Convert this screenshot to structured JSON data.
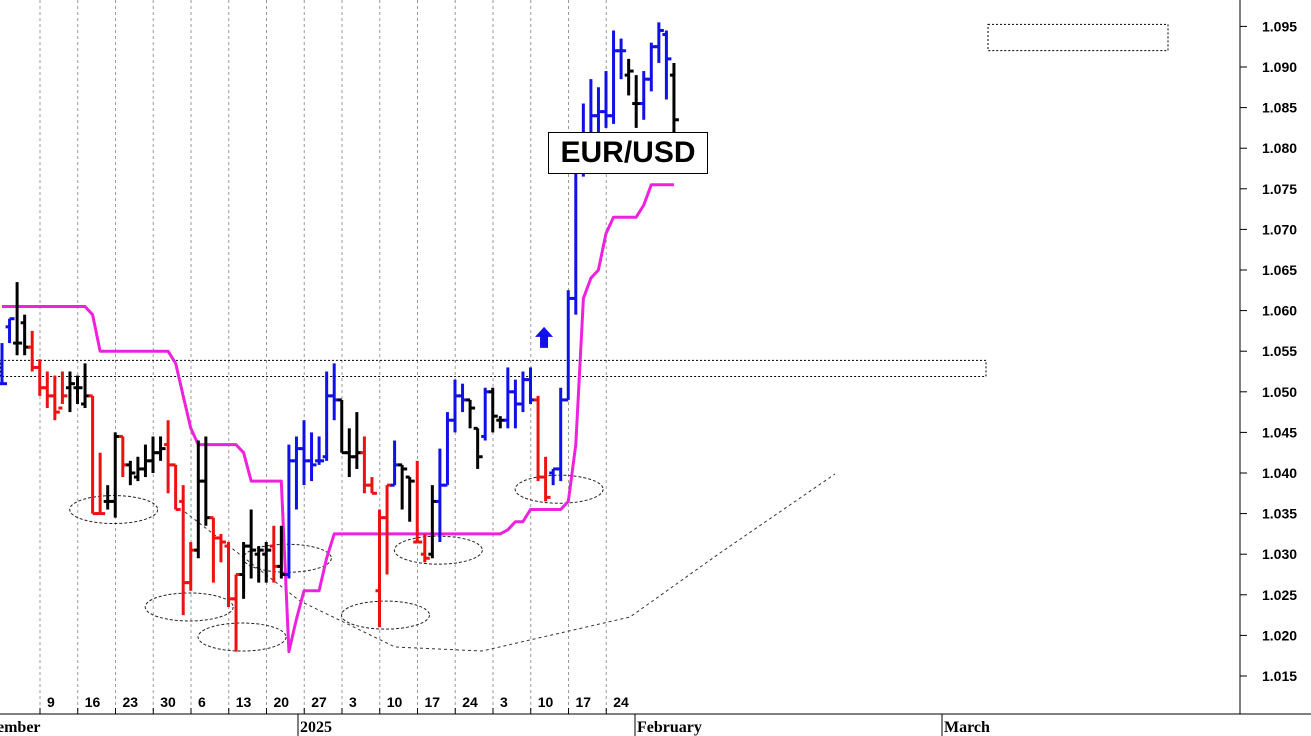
{
  "chart_data": {
    "type": "bar",
    "title": "EUR/USD",
    "ylim": [
      1.013,
      1.099
    ],
    "yticks": [
      "1.015",
      "1.020",
      "1.025",
      "1.030",
      "1.035",
      "1.040",
      "1.045",
      "1.050",
      "1.055",
      "1.060",
      "1.065",
      "1.070",
      "1.075",
      "1.080",
      "1.085",
      "1.090",
      "1.095"
    ],
    "xticks": [
      "9",
      "16",
      "23",
      "30",
      "6",
      "13",
      "20",
      "27",
      "3",
      "10",
      "17",
      "24",
      "3",
      "10",
      "17",
      "24"
    ],
    "month_labels": [
      "ember",
      "2025",
      "February",
      "March"
    ],
    "grid": true,
    "colors": {
      "up": "#1010e8",
      "down": "#ee1111",
      "neutral": "#000000",
      "stop": "#ee22dd",
      "guide": "#333333"
    },
    "series": [
      {
        "type": "ohlc",
        "bars": [
          {
            "h": 1.056,
            "l": 1.051,
            "o": 1.051,
            "c": 1.051,
            "col": "blue"
          },
          {
            "h": 1.059,
            "l": 1.056,
            "o": 1.058,
            "c": 1.059,
            "col": "blue"
          },
          {
            "h": 1.0635,
            "l": 1.0545,
            "o": 1.056,
            "c": 1.056,
            "col": "black"
          },
          {
            "h": 1.0595,
            "l": 1.0545,
            "o": 1.0585,
            "c": 1.0555,
            "col": "black"
          },
          {
            "h": 1.0575,
            "l": 1.0525,
            "o": 1.0555,
            "c": 1.053,
            "col": "red"
          },
          {
            "h": 1.054,
            "l": 1.0495,
            "o": 1.053,
            "c": 1.0505,
            "col": "red"
          },
          {
            "h": 1.0525,
            "l": 1.048,
            "o": 1.0505,
            "c": 1.0495,
            "col": "red"
          },
          {
            "h": 1.052,
            "l": 1.0465,
            "o": 1.0495,
            "c": 1.0475,
            "col": "red"
          },
          {
            "h": 1.0525,
            "l": 1.0485,
            "o": 1.048,
            "c": 1.0495,
            "col": "red"
          },
          {
            "h": 1.0525,
            "l": 1.0475,
            "o": 1.0505,
            "c": 1.051,
            "col": "black"
          },
          {
            "h": 1.052,
            "l": 1.0485,
            "o": 1.0505,
            "c": 1.0505,
            "col": "black"
          },
          {
            "h": 1.0535,
            "l": 1.048,
            "o": 1.0485,
            "c": 1.0495,
            "col": "black"
          },
          {
            "h": 1.0495,
            "l": 1.035,
            "o": 1.0495,
            "c": 1.035,
            "col": "red"
          },
          {
            "h": 1.0425,
            "l": 1.035,
            "o": 1.035,
            "c": 1.035,
            "col": "red"
          },
          {
            "h": 1.0385,
            "l": 1.0355,
            "o": 1.0365,
            "c": 1.0365,
            "col": "black"
          },
          {
            "h": 1.045,
            "l": 1.0345,
            "o": 1.0365,
            "c": 1.0445,
            "col": "black"
          },
          {
            "h": 1.0445,
            "l": 1.0395,
            "o": 1.0445,
            "c": 1.041,
            "col": "red"
          },
          {
            "h": 1.0415,
            "l": 1.0385,
            "o": 1.041,
            "c": 1.04,
            "col": "black"
          },
          {
            "h": 1.042,
            "l": 1.039,
            "o": 1.0395,
            "c": 1.0405,
            "col": "black"
          },
          {
            "h": 1.0435,
            "l": 1.0395,
            "o": 1.0405,
            "c": 1.0415,
            "col": "black"
          },
          {
            "h": 1.0445,
            "l": 1.04,
            "o": 1.0415,
            "c": 1.0425,
            "col": "black"
          },
          {
            "h": 1.0445,
            "l": 1.0415,
            "o": 1.0425,
            "c": 1.043,
            "col": "black"
          },
          {
            "h": 1.0465,
            "l": 1.0375,
            "o": 1.0435,
            "c": 1.041,
            "col": "red"
          },
          {
            "h": 1.041,
            "l": 1.0355,
            "o": 1.041,
            "c": 1.0355,
            "col": "red"
          },
          {
            "h": 1.0385,
            "l": 1.0225,
            "o": 1.0365,
            "c": 1.0265,
            "col": "red"
          },
          {
            "h": 1.0315,
            "l": 1.0255,
            "o": 1.0265,
            "c": 1.0305,
            "col": "red"
          },
          {
            "h": 1.044,
            "l": 1.0295,
            "o": 1.0305,
            "c": 1.039,
            "col": "black"
          },
          {
            "h": 1.0445,
            "l": 1.0335,
            "o": 1.039,
            "c": 1.0345,
            "col": "black"
          },
          {
            "h": 1.0345,
            "l": 1.0265,
            "o": 1.0345,
            "c": 1.032,
            "col": "red"
          },
          {
            "h": 1.0325,
            "l": 1.029,
            "o": 1.032,
            "c": 1.0315,
            "col": "red"
          },
          {
            "h": 1.0315,
            "l": 1.0235,
            "o": 1.031,
            "c": 1.0245,
            "col": "red"
          },
          {
            "h": 1.0275,
            "l": 1.018,
            "o": 1.0245,
            "c": 1.0275,
            "col": "red"
          },
          {
            "h": 1.0315,
            "l": 1.0245,
            "o": 1.0275,
            "c": 1.031,
            "col": "black"
          },
          {
            "h": 1.0355,
            "l": 1.027,
            "o": 1.031,
            "c": 1.0305,
            "col": "black"
          },
          {
            "h": 1.031,
            "l": 1.0265,
            "o": 1.03,
            "c": 1.0305,
            "col": "black"
          },
          {
            "h": 1.0315,
            "l": 1.0265,
            "o": 1.03,
            "c": 1.0305,
            "col": "black"
          },
          {
            "h": 1.0335,
            "l": 1.0265,
            "o": 1.031,
            "c": 1.0285,
            "col": "red"
          },
          {
            "h": 1.0335,
            "l": 1.027,
            "o": 1.0285,
            "c": 1.0275,
            "col": "black"
          },
          {
            "h": 1.0435,
            "l": 1.027,
            "o": 1.0275,
            "c": 1.0415,
            "col": "blue"
          },
          {
            "h": 1.0445,
            "l": 1.0355,
            "o": 1.0415,
            "c": 1.043,
            "col": "blue"
          },
          {
            "h": 1.0465,
            "l": 1.0385,
            "o": 1.043,
            "c": 1.0415,
            "col": "blue"
          },
          {
            "h": 1.045,
            "l": 1.039,
            "o": 1.0415,
            "c": 1.041,
            "col": "blue"
          },
          {
            "h": 1.0445,
            "l": 1.041,
            "o": 1.0415,
            "c": 1.0415,
            "col": "blue"
          },
          {
            "h": 1.0525,
            "l": 1.0415,
            "o": 1.042,
            "c": 1.0495,
            "col": "blue"
          },
          {
            "h": 1.0535,
            "l": 1.0465,
            "o": 1.0495,
            "c": 1.049,
            "col": "blue"
          },
          {
            "h": 1.049,
            "l": 1.0425,
            "o": 1.049,
            "c": 1.0425,
            "col": "black"
          },
          {
            "h": 1.0455,
            "l": 1.0395,
            "o": 1.0425,
            "c": 1.042,
            "col": "black"
          },
          {
            "h": 1.0475,
            "l": 1.0405,
            "o": 1.042,
            "c": 1.0425,
            "col": "black"
          },
          {
            "h": 1.0445,
            "l": 1.0375,
            "o": 1.0425,
            "c": 1.0385,
            "col": "red"
          },
          {
            "h": 1.0395,
            "l": 1.0375,
            "o": 1.0385,
            "c": 1.0375,
            "col": "red"
          },
          {
            "h": 1.0355,
            "l": 1.021,
            "o": 1.0255,
            "c": 1.0345,
            "col": "red"
          },
          {
            "h": 1.0385,
            "l": 1.0275,
            "o": 1.0345,
            "c": 1.0385,
            "col": "red"
          },
          {
            "h": 1.044,
            "l": 1.0385,
            "o": 1.0385,
            "c": 1.041,
            "col": "blue"
          },
          {
            "h": 1.041,
            "l": 1.0355,
            "o": 1.041,
            "c": 1.0405,
            "col": "black"
          },
          {
            "h": 1.0395,
            "l": 1.034,
            "o": 1.0395,
            "c": 1.039,
            "col": "black"
          },
          {
            "h": 1.0415,
            "l": 1.0315,
            "o": 1.0315,
            "c": 1.0315,
            "col": "red"
          },
          {
            "h": 1.0325,
            "l": 1.029,
            "o": 1.03,
            "c": 1.0295,
            "col": "red"
          },
          {
            "h": 1.0385,
            "l": 1.0295,
            "o": 1.03,
            "c": 1.0365,
            "col": "black"
          },
          {
            "h": 1.043,
            "l": 1.0315,
            "o": 1.0365,
            "c": 1.0385,
            "col": "blue"
          },
          {
            "h": 1.0475,
            "l": 1.0385,
            "o": 1.0385,
            "c": 1.0465,
            "col": "blue"
          },
          {
            "h": 1.0515,
            "l": 1.045,
            "o": 1.0465,
            "c": 1.0495,
            "col": "blue"
          },
          {
            "h": 1.051,
            "l": 1.0475,
            "o": 1.0495,
            "c": 1.049,
            "col": "blue"
          },
          {
            "h": 1.049,
            "l": 1.0455,
            "o": 1.049,
            "c": 1.048,
            "col": "black"
          },
          {
            "h": 1.0455,
            "l": 1.0405,
            "o": 1.0455,
            "c": 1.042,
            "col": "black"
          },
          {
            "h": 1.0505,
            "l": 1.044,
            "o": 1.0445,
            "c": 1.05,
            "col": "blue"
          },
          {
            "h": 1.0505,
            "l": 1.045,
            "o": 1.05,
            "c": 1.047,
            "col": "black"
          },
          {
            "h": 1.047,
            "l": 1.0455,
            "o": 1.0465,
            "c": 1.0465,
            "col": "black"
          },
          {
            "h": 1.053,
            "l": 1.0455,
            "o": 1.0465,
            "c": 1.05,
            "col": "blue"
          },
          {
            "h": 1.0515,
            "l": 1.0455,
            "o": 1.05,
            "c": 1.0485,
            "col": "blue"
          },
          {
            "h": 1.0525,
            "l": 1.0475,
            "o": 1.0485,
            "c": 1.0515,
            "col": "blue"
          },
          {
            "h": 1.053,
            "l": 1.0485,
            "o": 1.0515,
            "c": 1.049,
            "col": "blue"
          },
          {
            "h": 1.0495,
            "l": 1.039,
            "o": 1.049,
            "c": 1.0395,
            "col": "red"
          },
          {
            "h": 1.042,
            "l": 1.0365,
            "o": 1.0395,
            "c": 1.037,
            "col": "red"
          },
          {
            "h": 1.0405,
            "l": 1.0385,
            "o": 1.04,
            "c": 1.0405,
            "col": "blue"
          },
          {
            "h": 1.0505,
            "l": 1.039,
            "o": 1.0405,
            "c": 1.049,
            "col": "blue"
          },
          {
            "h": 1.0625,
            "l": 1.049,
            "o": 1.049,
            "c": 1.0615,
            "col": "blue"
          },
          {
            "h": 1.0795,
            "l": 1.0595,
            "o": 1.0615,
            "c": 1.0795,
            "col": "blue"
          },
          {
            "h": 1.0855,
            "l": 1.0765,
            "o": 1.0795,
            "c": 1.0795,
            "col": "blue"
          },
          {
            "h": 1.0885,
            "l": 1.078,
            "o": 1.0795,
            "c": 1.084,
            "col": "blue"
          },
          {
            "h": 1.0875,
            "l": 1.0795,
            "o": 1.084,
            "c": 1.0845,
            "col": "blue"
          },
          {
            "h": 1.0895,
            "l": 1.0825,
            "o": 1.0845,
            "c": 1.084,
            "col": "blue"
          },
          {
            "h": 1.0945,
            "l": 1.083,
            "o": 1.084,
            "c": 1.092,
            "col": "blue"
          },
          {
            "h": 1.0935,
            "l": 1.0885,
            "o": 1.092,
            "c": 1.092,
            "col": "blue"
          },
          {
            "h": 1.091,
            "l": 1.0865,
            "o": 1.089,
            "c": 1.0895,
            "col": "black"
          },
          {
            "h": 1.089,
            "l": 1.0825,
            "o": 1.0855,
            "c": 1.0855,
            "col": "black"
          },
          {
            "h": 1.0895,
            "l": 1.0835,
            "o": 1.0855,
            "c": 1.0885,
            "col": "blue"
          },
          {
            "h": 1.093,
            "l": 1.087,
            "o": 1.0885,
            "c": 1.0925,
            "col": "blue"
          },
          {
            "h": 1.0955,
            "l": 1.0905,
            "o": 1.0925,
            "c": 1.0945,
            "col": "blue"
          },
          {
            "h": 1.0945,
            "l": 1.086,
            "o": 1.094,
            "c": 1.091,
            "col": "blue"
          },
          {
            "h": 1.0905,
            "l": 1.0815,
            "o": 1.089,
            "c": 1.0835,
            "col": "black"
          }
        ]
      },
      {
        "type": "line",
        "values": [
          1.0605,
          1.0605,
          1.0605,
          1.0605,
          1.0605,
          1.0605,
          1.0605,
          1.0605,
          1.0605,
          1.0605,
          1.0605,
          1.0605,
          1.0595,
          1.055,
          1.055,
          1.055,
          1.055,
          1.055,
          1.055,
          1.055,
          1.055,
          1.055,
          1.055,
          1.0535,
          1.0495,
          1.0455,
          1.0435,
          1.0435,
          1.0435,
          1.0435,
          1.0435,
          1.0435,
          1.0425,
          1.039,
          1.039,
          1.039,
          1.039,
          1.039,
          1.018,
          1.022,
          1.0255,
          1.0255,
          1.0255,
          1.0295,
          1.0325,
          1.0325,
          1.0325,
          1.0325,
          1.0325,
          1.0325,
          1.0325,
          1.0325,
          1.0325,
          1.0325,
          1.0325,
          1.0325,
          1.0325,
          1.0325,
          1.0325,
          1.0325,
          1.0325,
          1.0325,
          1.0325,
          1.0325,
          1.0325,
          1.0325,
          1.0325,
          1.033,
          1.034,
          1.034,
          1.0355,
          1.0355,
          1.0355,
          1.0355,
          1.0355,
          1.0365,
          1.0435,
          1.0615,
          1.064,
          1.065,
          1.0695,
          1.0715,
          1.0715,
          1.0715,
          1.0715,
          1.073,
          1.0755,
          1.0755,
          1.0755,
          1.0755
        ]
      }
    ],
    "stop_start_index": 0,
    "levels": {
      "mid_band": [
        1.0525,
        1.0535
      ],
      "top_band": [
        1.093,
        1.0955
      ]
    },
    "ellipses": [
      {
        "i": 14,
        "y": 1.0355
      },
      {
        "i": 24,
        "y": 1.0235
      },
      {
        "i": 31,
        "y": 1.0198
      },
      {
        "i": 37,
        "y": 1.0295
      },
      {
        "i": 50,
        "y": 1.0225
      },
      {
        "i": 57,
        "y": 1.0305
      },
      {
        "i": 73,
        "y": 1.038
      }
    ],
    "arrow": {
      "i": 71,
      "y": 1.058
    }
  }
}
